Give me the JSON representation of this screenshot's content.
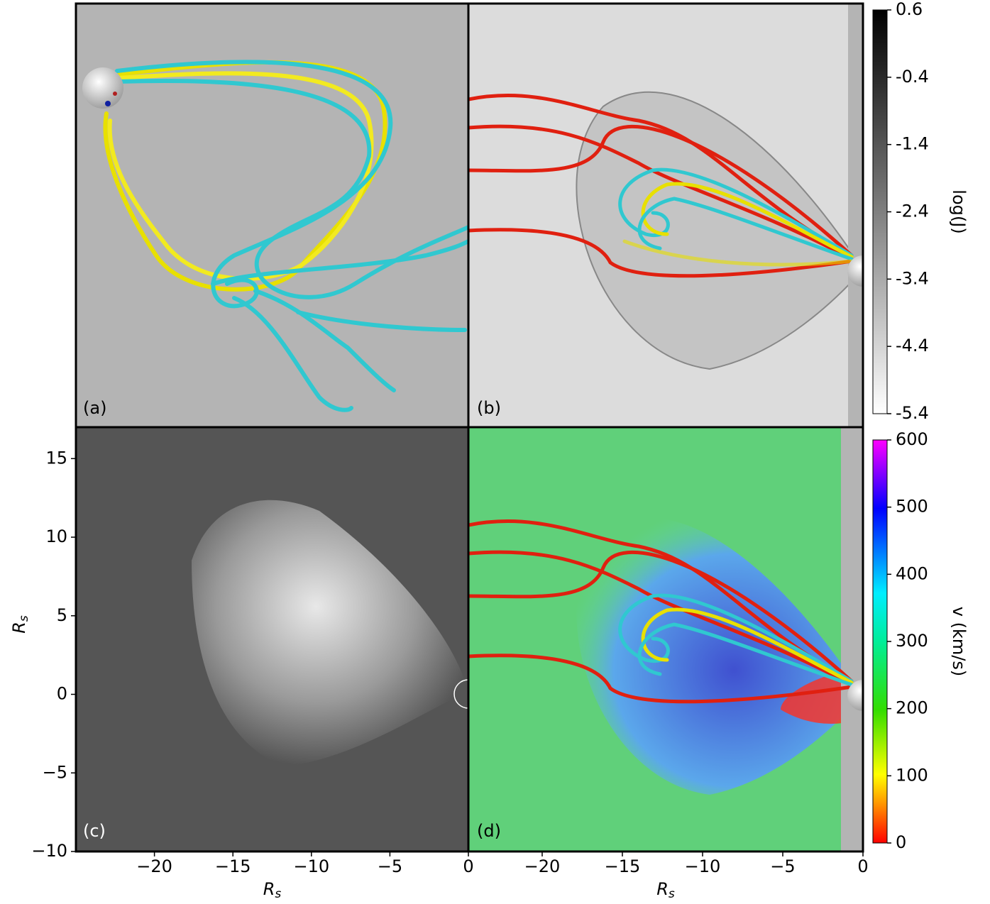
{
  "panels": [
    {
      "label": "(a)"
    },
    {
      "label": "(b)"
    },
    {
      "label": "(c)"
    },
    {
      "label": "(d)"
    }
  ],
  "axes": {
    "c": {
      "xlim": [
        -25,
        0
      ],
      "xticks": [
        {
          "value": -20,
          "label": "−20"
        },
        {
          "value": -15,
          "label": "−15"
        },
        {
          "value": -10,
          "label": "−10"
        },
        {
          "value": -5,
          "label": "−5"
        },
        0
      ],
      "ylim": [
        -10,
        17
      ],
      "yticks": [
        {
          "value": -10,
          "label": "−10"
        },
        {
          "value": -5,
          "label": "−5"
        },
        0,
        5,
        10,
        15
      ],
      "xlabel": {
        "base": "R",
        "subscript": "s"
      },
      "ylabel": {
        "base": "R",
        "subscript": "s"
      }
    },
    "d": {
      "xlim": [
        -24.6,
        0
      ],
      "xticks": [
        {
          "value": -20,
          "label": "−20"
        },
        {
          "value": -15,
          "label": "−15"
        },
        {
          "value": -10,
          "label": "−10"
        },
        {
          "value": -5,
          "label": "−5"
        },
        0
      ],
      "xlabel": {
        "base": "R",
        "subscript": "s"
      }
    }
  },
  "colorbars": [
    {
      "label": "log(J)",
      "colormap": "gray",
      "lim": [
        -5.4,
        0.6
      ],
      "ticks": [
        0.6,
        -0.4,
        -1.4,
        -2.4,
        -3.4,
        -4.4,
        -5.4
      ]
    },
    {
      "label": "v (km/s)",
      "colormap": "rainbow",
      "lim": [
        0,
        600
      ],
      "ticks": [
        0,
        100,
        200,
        300,
        400,
        500,
        600
      ]
    }
  ]
}
